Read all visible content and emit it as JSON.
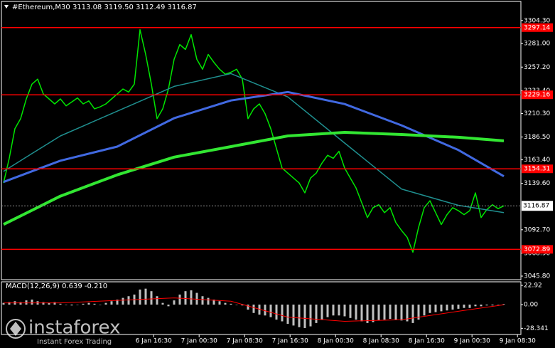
{
  "chart_data": [
    {
      "type": "line",
      "title": "#Ethereum,M30  3113.08 3119.50 3112.49 3116.87",
      "xlim": [
        0,
        90.5
      ],
      "xticks": [
        {
          "value": 26.4,
          "label": "6 Jan 16:30"
        },
        {
          "value": 34.4,
          "label": "7 Jan 00:30"
        },
        {
          "value": 42.4,
          "label": "7 Jan 08:30"
        },
        {
          "value": 50.4,
          "label": "7 Jan 16:30"
        },
        {
          "value": 58.4,
          "label": "8 Jan 00:30"
        },
        {
          "value": 66.4,
          "label": "8 Jan 08:30"
        },
        {
          "value": 74.4,
          "label": "8 Jan 16:30"
        },
        {
          "value": 82.4,
          "label": "9 Jan 00:30"
        },
        {
          "value": 90.4,
          "label": "9 Jan 08:30"
        }
      ],
      "ylim": [
        3042.2,
        3323.6
      ],
      "yticks": [
        {
          "value": 3304.3,
          "label": "3304.30"
        },
        {
          "value": 3281,
          "label": "3281.00"
        },
        {
          "value": 3257.2,
          "label": "3257.20"
        },
        {
          "value": 3233.4,
          "label": "3233.40"
        },
        {
          "value": 3210.3,
          "label": "3210.30"
        },
        {
          "value": 3186.5,
          "label": "3186.50"
        },
        {
          "value": 3163.4,
          "label": "3163.40"
        },
        {
          "value": 3139.6,
          "label": "3139.60"
        },
        {
          "value": 3092.7,
          "label": "3092.70"
        },
        {
          "value": 3068.9,
          "label": "3068.90"
        },
        {
          "value": 3045.8,
          "label": "3045.80"
        }
      ],
      "series": [
        {
          "color": "#00e600",
          "width": 1.5,
          "values": [
            3140,
            3165,
            3195,
            3205,
            3225,
            3240,
            3245,
            3230,
            3225,
            3220,
            3225,
            3218,
            3222,
            3226,
            3220,
            3223,
            3215,
            3217,
            3220,
            3225,
            3230,
            3235,
            3232,
            3240,
            3295,
            3270,
            3240,
            3205,
            3215,
            3235,
            3265,
            3280,
            3275,
            3290,
            3265,
            3255,
            3270,
            3262,
            3255,
            3250,
            3252,
            3255,
            3245,
            3205,
            3215,
            3220,
            3210,
            3195,
            3175,
            3155,
            3150,
            3145,
            3140,
            3130,
            3145,
            3150,
            3160,
            3168,
            3165,
            3172,
            3155,
            3145,
            3135,
            3120,
            3105,
            3115,
            3118,
            3110,
            3115,
            3100,
            3092,
            3085,
            3070,
            3095,
            3115,
            3122,
            3110,
            3098,
            3108,
            3115,
            3112,
            3108,
            3112,
            3130,
            3105,
            3113,
            3118,
            3114,
            3116.87
          ]
        },
        {
          "color": "#1f8f8f",
          "width": 1.5,
          "x": [
            0,
            5,
            10,
            20,
            30,
            40,
            50,
            60,
            70,
            80,
            88
          ],
          "values": [
            3151.8,
            3169.7,
            3187.6,
            3212.6,
            3237.7,
            3250.6,
            3227,
            3180.4,
            3133.9,
            3117.4,
            3110
          ]
        },
        {
          "color": "#4169e1",
          "width": 3,
          "x": [
            0,
            5,
            10,
            20,
            30,
            40,
            50,
            60,
            70,
            80,
            88
          ],
          "values": [
            3141,
            3151.8,
            3162.5,
            3176.8,
            3205.5,
            3223.4,
            3232,
            3219.8,
            3198.3,
            3173.3,
            3146.8
          ]
        },
        {
          "color": "#32e632",
          "width": 4,
          "x": [
            0,
            5,
            10,
            20,
            30,
            40,
            50,
            60,
            70,
            80,
            88
          ],
          "values": [
            3098.1,
            3112.4,
            3126.7,
            3148.2,
            3166.1,
            3176.8,
            3187.6,
            3191.2,
            3189,
            3186.2,
            3182.6
          ]
        }
      ],
      "levels": [
        3297.14,
        3229.16,
        3154.31,
        3072.89
      ],
      "level_color": "#ff0000",
      "last_price": 3116.87
    },
    {
      "type": "bar",
      "title": "MACD(12,26,9) 0.639 -0.210",
      "xlim": [
        0,
        90.5
      ],
      "ylim": [
        -35.7,
        27.2
      ],
      "yticks": [
        22.92,
        {
          "value": 0,
          "label": "0.00"
        },
        -28.341
      ],
      "series": [
        {
          "color": "#c0c0c0",
          "values": [
            2,
            3,
            4,
            3,
            5,
            6,
            4,
            3,
            2,
            3,
            1,
            0,
            -1,
            0,
            1,
            2,
            1,
            0,
            2,
            4,
            6,
            8,
            10,
            12,
            18,
            19,
            16,
            10,
            2,
            -2,
            5,
            12,
            16,
            17,
            14,
            10,
            8,
            6,
            4,
            2,
            1,
            0,
            -1,
            -6,
            -10,
            -12,
            -13,
            -15,
            -18,
            -20,
            -23,
            -25,
            -27,
            -28,
            -26,
            -22,
            -18,
            -15,
            -13,
            -13,
            -14,
            -16,
            -18,
            -20,
            -22,
            -21,
            -19,
            -18,
            -17,
            -18,
            -19,
            -20,
            -22,
            -18,
            -13,
            -10,
            -9,
            -8,
            -7,
            -6,
            -5,
            -4,
            -4,
            -2,
            -2,
            -1,
            -1,
            0,
            0.639
          ]
        },
        {
          "color": "#ff0000",
          "x": [
            0,
            10,
            20,
            30,
            40,
            50,
            60,
            70,
            80,
            88
          ],
          "values": [
            2,
            2,
            5,
            8,
            4,
            -15,
            -20,
            -18,
            -8,
            -0.21
          ]
        }
      ]
    }
  ],
  "logo": {
    "name": "instaforex",
    "tagline": "Instant Forex Trading"
  }
}
